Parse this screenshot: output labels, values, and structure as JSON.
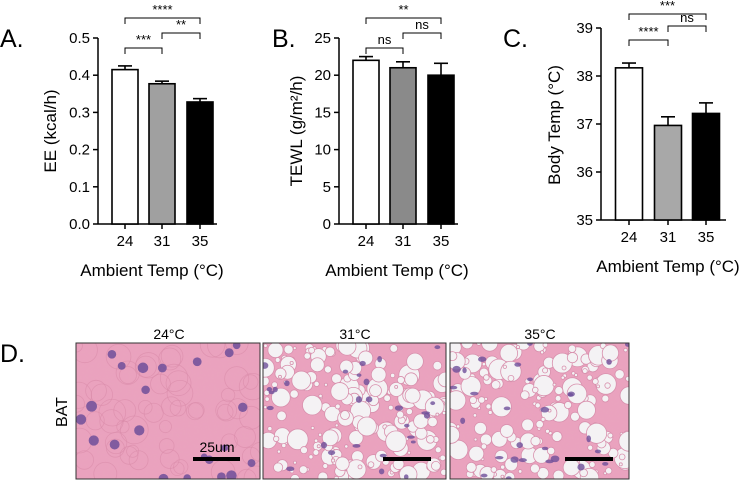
{
  "panel_letters": [
    "A.",
    "B.",
    "C.",
    "D."
  ],
  "histology": {
    "row_label": "BAT",
    "titles": [
      "24°C",
      "31°C",
      "35°C"
    ],
    "scale_label": "25um",
    "tissue_color": "#e9a3bd",
    "nucleus_color": "#6e4f9a"
  },
  "chart_data": [
    {
      "type": "bar",
      "panel": "A.",
      "categories": [
        "24",
        "31",
        "35"
      ],
      "values": [
        0.415,
        0.377,
        0.328
      ],
      "errors": [
        0.01,
        0.007,
        0.009
      ],
      "bar_fills": [
        "#ffffff",
        "#a0a0a0",
        "#000000"
      ],
      "xlabel": "Ambient Temp (°C)",
      "ylabel": "EE (kcal/h)",
      "ylim": [
        0,
        0.5
      ],
      "yticks": [
        "0.0",
        "0.1",
        "0.2",
        "0.3",
        "0.4",
        "0.5"
      ],
      "significance": [
        {
          "from": 0,
          "to": 1,
          "label": "***"
        },
        {
          "from": 1,
          "to": 2,
          "label": "**"
        },
        {
          "from": 0,
          "to": 2,
          "label": "****"
        }
      ]
    },
    {
      "type": "bar",
      "panel": "B.",
      "categories": [
        "24",
        "31",
        "35"
      ],
      "values": [
        22.0,
        21.0,
        20.0
      ],
      "errors": [
        0.5,
        0.8,
        1.6
      ],
      "bar_fills": [
        "#ffffff",
        "#8a8a8a",
        "#000000"
      ],
      "xlabel": "Ambient Temp (°C)",
      "ylabel": "TEWL (g/m²/h)",
      "ylim": [
        0,
        25
      ],
      "yticks": [
        "0",
        "5",
        "10",
        "15",
        "20",
        "25"
      ],
      "significance": [
        {
          "from": 0,
          "to": 1,
          "label": "ns"
        },
        {
          "from": 1,
          "to": 2,
          "label": "ns"
        },
        {
          "from": 0,
          "to": 2,
          "label": "**"
        }
      ]
    },
    {
      "type": "bar",
      "panel": "C.",
      "categories": [
        "24",
        "31",
        "35"
      ],
      "values": [
        38.17,
        36.97,
        37.22
      ],
      "errors": [
        0.1,
        0.18,
        0.22
      ],
      "bar_fills": [
        "#ffffff",
        "#a8a8a8",
        "#000000"
      ],
      "xlabel": "Ambient Temp (°C)",
      "ylabel": "Body Temp (°C)",
      "ylim": [
        35,
        39
      ],
      "yticks": [
        "35",
        "36",
        "37",
        "38",
        "39"
      ],
      "significance": [
        {
          "from": 0,
          "to": 1,
          "label": "****"
        },
        {
          "from": 1,
          "to": 2,
          "label": "ns"
        },
        {
          "from": 0,
          "to": 2,
          "label": "***"
        }
      ]
    }
  ]
}
